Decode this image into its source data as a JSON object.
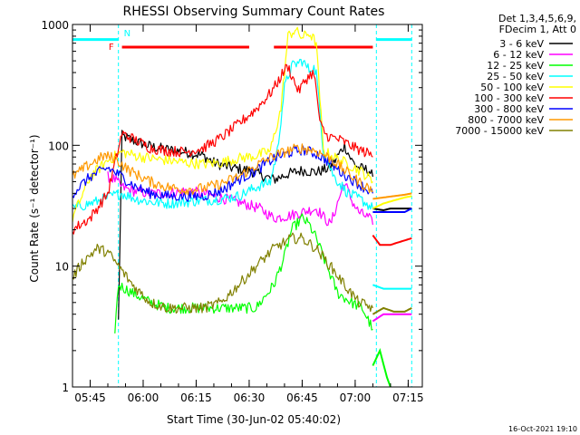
{
  "chart_data": {
    "type": "line",
    "title": "RHESSI Observing Summary Count Rates",
    "xlabel": "Start Time (30-Jun-02 05:40:02)",
    "ylabel": "Count Rate (s⁻¹ detector⁻¹)",
    "y_scale": "log",
    "ylim": [
      1,
      1000
    ],
    "xlim": [
      0,
      99
    ],
    "x_units": "minutes after 05:40:02",
    "x_ticks": [
      {
        "x": 5,
        "label": "05:45"
      },
      {
        "x": 20,
        "label": "06:00"
      },
      {
        "x": 35,
        "label": "06:15"
      },
      {
        "x": 50,
        "label": "06:30"
      },
      {
        "x": 65,
        "label": "06:45"
      },
      {
        "x": 80,
        "label": "07:00"
      },
      {
        "x": 95,
        "label": "07:15"
      }
    ],
    "y_ticks": [
      {
        "y": 1,
        "label": "1"
      },
      {
        "y": 10,
        "label": "10"
      },
      {
        "y": 100,
        "label": "100"
      },
      {
        "y": 1000,
        "label": "1000"
      }
    ],
    "legend_header": [
      "Det 1,3,4,5,6,9,",
      "FDecim 1, Att 0"
    ],
    "legend_position": "right",
    "night_markers": [
      {
        "x": 13,
        "label": "N"
      },
      {
        "x": 86,
        "label": ""
      }
    ],
    "saa_level": 750,
    "flag_marker": {
      "x": 11.5,
      "label": "F"
    },
    "flag_bars": [
      {
        "x": [
          14,
          50
        ],
        "y": 650
      },
      {
        "x": [
          57,
          85
        ],
        "y": 650
      }
    ],
    "series": [
      {
        "name": "3 - 6 keV",
        "color": "#000000",
        "x": [
          13,
          14,
          17,
          22,
          27,
          32,
          37,
          40,
          45,
          50,
          53,
          57,
          61,
          65,
          69,
          73,
          77,
          79,
          81,
          84,
          85
        ],
        "y": [
          3.5,
          120,
          110,
          98,
          92,
          88,
          82,
          72,
          65,
          62,
          57,
          52,
          58,
          62,
          60,
          65,
          100,
          75,
          65,
          62,
          55
        ]
      },
      {
        "name": "6 - 12 keV",
        "color": "#ff00ff",
        "x": [
          10,
          12,
          14,
          17,
          22,
          27,
          32,
          37,
          40,
          45,
          50,
          53,
          57,
          61,
          65,
          69,
          73,
          77,
          79,
          81,
          84,
          85
        ],
        "y": [
          55,
          52,
          45,
          42,
          40,
          40,
          42,
          40,
          38,
          35,
          32,
          30,
          25,
          26,
          28,
          30,
          22,
          50,
          35,
          28,
          25,
          22
        ]
      },
      {
        "name": "12 - 25 keV",
        "color": "#00ff00",
        "x": [
          12,
          13,
          17,
          22,
          27,
          32,
          37,
          42,
          47,
          52,
          57,
          60,
          62,
          65,
          67,
          69,
          72,
          75,
          79,
          82,
          85
        ],
        "y": [
          3,
          7,
          6,
          5,
          4.5,
          4.5,
          4.5,
          4.5,
          4.5,
          4.5,
          7,
          12,
          20,
          25,
          22,
          17,
          10,
          6,
          5,
          4.5,
          3
        ]
      },
      {
        "name": "25 - 50 keV",
        "color": "#00ffff",
        "x": [
          0,
          8,
          11,
          14,
          18,
          22,
          27,
          32,
          37,
          42,
          47,
          52,
          56,
          58,
          60,
          62,
          65,
          67,
          68,
          69,
          71,
          74,
          78,
          82,
          85
        ],
        "y": [
          30,
          35,
          38,
          40,
          36,
          34,
          33,
          34,
          35,
          36,
          38,
          45,
          50,
          90,
          300,
          450,
          500,
          420,
          450,
          400,
          90,
          55,
          40,
          35,
          30
        ]
      },
      {
        "name": "50 - 100 keV",
        "color": "#ffff00",
        "x": [
          0,
          5,
          10,
          14,
          18,
          22,
          27,
          32,
          37,
          42,
          47,
          52,
          56,
          59,
          61,
          63,
          65,
          67,
          69,
          71,
          74,
          78,
          82,
          85
        ],
        "y": [
          25,
          55,
          75,
          88,
          82,
          78,
          75,
          72,
          70,
          72,
          78,
          82,
          90,
          200,
          800,
          900,
          780,
          850,
          700,
          90,
          80,
          70,
          60,
          50
        ]
      },
      {
        "name": "100 - 300 keV",
        "color": "#ff0000",
        "x": [
          0,
          5,
          10,
          14,
          18,
          22,
          27,
          32,
          37,
          42,
          47,
          52,
          56,
          58,
          60,
          61,
          62,
          64,
          66,
          68,
          69,
          70,
          72,
          76,
          80,
          84,
          85
        ],
        "y": [
          20,
          25,
          40,
          125,
          110,
          95,
          90,
          88,
          95,
          115,
          150,
          200,
          270,
          330,
          420,
          450,
          380,
          280,
          350,
          400,
          300,
          150,
          120,
          110,
          95,
          85,
          80
        ]
      },
      {
        "name": "300 - 800 keV",
        "color": "#0000ff",
        "x": [
          0,
          5,
          10,
          14,
          18,
          22,
          27,
          32,
          37,
          42,
          47,
          52,
          57,
          62,
          65,
          69,
          72,
          76,
          80,
          84,
          85
        ],
        "y": [
          40,
          55,
          65,
          55,
          45,
          40,
          38,
          38,
          38,
          42,
          52,
          62,
          78,
          88,
          92,
          85,
          75,
          60,
          50,
          42,
          40
        ]
      },
      {
        "name": "800 - 7000 keV",
        "color": "#ff9900",
        "x": [
          0,
          5,
          9,
          12,
          16,
          22,
          27,
          32,
          37,
          42,
          47,
          52,
          57,
          62,
          65,
          69,
          73,
          77,
          81,
          85
        ],
        "y": [
          55,
          70,
          82,
          78,
          62,
          50,
          45,
          43,
          44,
          48,
          55,
          68,
          82,
          92,
          95,
          90,
          78,
          62,
          50,
          42
        ]
      },
      {
        "name": "7000 - 15000 keV",
        "color": "#808000",
        "x": [
          0,
          3,
          7,
          10,
          13,
          17,
          22,
          27,
          32,
          37,
          42,
          47,
          52,
          57,
          62,
          65,
          69,
          73,
          77,
          81,
          85
        ],
        "y": [
          8,
          11,
          14,
          13,
          10,
          7,
          5,
          4.5,
          4.5,
          4.5,
          5,
          7,
          10,
          14,
          17,
          17,
          14,
          10,
          7,
          5,
          4.5
        ]
      }
    ],
    "edge_traces": [
      {
        "color": "#000000",
        "x": [
          85,
          88,
          90,
          93,
          96
        ],
        "y": [
          30,
          29,
          30,
          30,
          30
        ]
      },
      {
        "color": "#ff00ff",
        "x": [
          85,
          88,
          90,
          93,
          96
        ],
        "y": [
          3.5,
          4,
          4,
          4,
          4
        ]
      },
      {
        "color": "#00ff00",
        "x": [
          85,
          87,
          89,
          90
        ],
        "y": [
          1.5,
          2,
          1.2,
          1
        ]
      },
      {
        "color": "#00ffff",
        "x": [
          85,
          88,
          91,
          94,
          96
        ],
        "y": [
          7,
          6.5,
          6.5,
          6.5,
          6.5
        ]
      },
      {
        "color": "#ffff00",
        "x": [
          85,
          88,
          91,
          94,
          96
        ],
        "y": [
          30,
          33,
          35,
          37,
          38
        ]
      },
      {
        "color": "#ff0000",
        "x": [
          85,
          87,
          90,
          93,
          96
        ],
        "y": [
          18,
          15,
          15,
          16,
          17
        ]
      },
      {
        "color": "#0000ff",
        "x": [
          85,
          88,
          91,
          94,
          96
        ],
        "y": [
          28,
          28,
          28,
          28,
          30
        ]
      },
      {
        "color": "#ff9900",
        "x": [
          85,
          88,
          91,
          94,
          96
        ],
        "y": [
          36,
          37,
          38,
          39,
          40
        ]
      },
      {
        "color": "#808000",
        "x": [
          85,
          88,
          91,
          94,
          96
        ],
        "y": [
          4,
          4.5,
          4.2,
          4.2,
          4.5
        ]
      }
    ]
  },
  "timestamp": "16-Oct-2021 19:10"
}
